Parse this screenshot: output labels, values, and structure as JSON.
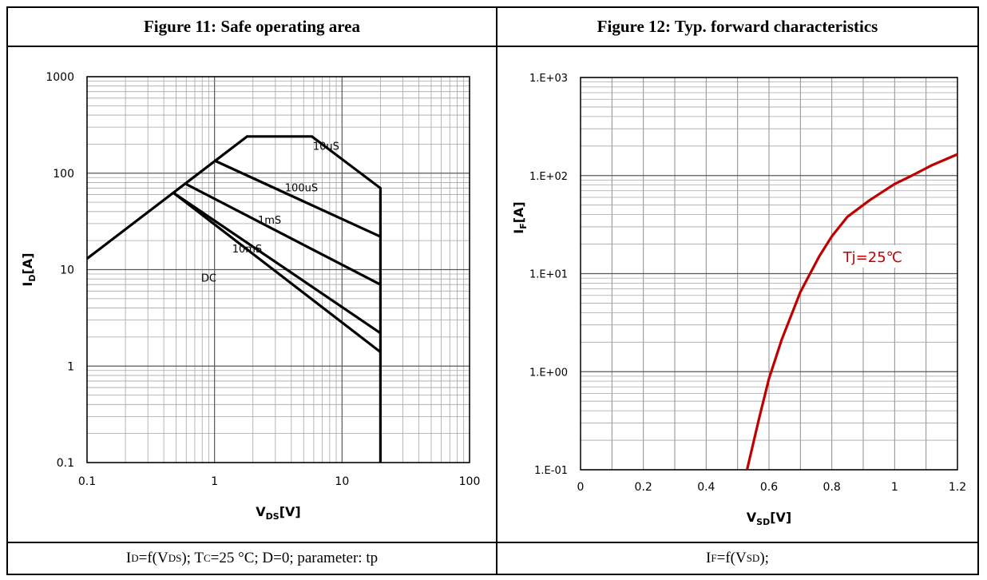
{
  "left": {
    "header": "Figure 11:  Safe operating area",
    "footer": {
      "p1": "I",
      "p1sub": "D",
      "p2": "=f(V",
      "p2sub": "DS",
      "p3": "); T",
      "p3sub": "C",
      "p4": "=25 °C; D=0; parameter: tp"
    }
  },
  "right": {
    "header": "Figure 12:  Typ. forward characteristics",
    "footer": {
      "p1": "I",
      "p1sub": "F",
      "p2": "=f(V",
      "p2sub": "SD",
      "p3": ");"
    }
  },
  "chart_data": [
    {
      "type": "line",
      "title": "Figure 11:  Safe operating area",
      "xlabel": "V",
      "xlabel_sub": "DS",
      "xlabel_unit": "[V]",
      "ylabel": "I",
      "ylabel_sub": "D",
      "ylabel_unit": "[A]",
      "xscale": "log",
      "yscale": "log",
      "xlim": [
        0.1,
        100
      ],
      "ylim": [
        0.1,
        1000
      ],
      "xticks": [
        "0.1",
        "1",
        "10",
        "100"
      ],
      "yticks": [
        "0.1",
        "1",
        "10",
        "100",
        "1000"
      ],
      "grid": true,
      "series": [
        {
          "name": "10uS",
          "points": [
            [
              0.1,
              13
            ],
            [
              1.8,
              240
            ],
            [
              5.8,
              240
            ],
            [
              20,
              70
            ],
            [
              20,
              0.1
            ]
          ],
          "label_at": [
            7.5,
            175
          ]
        },
        {
          "name": "100uS",
          "points": [
            [
              1.0,
              135
            ],
            [
              20,
              22
            ]
          ],
          "label_at": [
            4.8,
            65
          ]
        },
        {
          "name": "1mS",
          "points": [
            [
              0.6,
              77
            ],
            [
              20,
              7
            ]
          ],
          "label_at": [
            2.7,
            30
          ]
        },
        {
          "name": "10mS",
          "points": [
            [
              0.48,
              62
            ],
            [
              20,
              2.2
            ]
          ],
          "label_at": [
            1.8,
            15
          ]
        },
        {
          "name": "DC",
          "points": [
            [
              0.48,
              62
            ],
            [
              20,
              1.4
            ]
          ],
          "label_at": [
            0.9,
            7.5
          ]
        }
      ],
      "color": "#000000"
    },
    {
      "type": "line",
      "title": "Figure 12:  Typ. forward characteristics",
      "xlabel": "V",
      "xlabel_sub": "SD",
      "xlabel_unit": "[V]",
      "ylabel": "I",
      "ylabel_sub": "F",
      "ylabel_unit": "[A]",
      "xscale": "linear",
      "yscale": "log",
      "xlim": [
        0,
        1.2
      ],
      "ylim": [
        0.1,
        1000
      ],
      "xticks": [
        "0",
        "0.2",
        "0.4",
        "0.6",
        "0.8",
        "1",
        "1.2"
      ],
      "yticks": [
        "1.E-01",
        "1.E+00",
        "1.E+01",
        "1.E+02",
        "1.E+03"
      ],
      "grid": true,
      "series": [
        {
          "name": "Tj=25℃",
          "x": [
            0.53,
            0.57,
            0.6,
            0.64,
            0.7,
            0.76,
            0.8,
            0.85,
            0.92,
            1.0,
            1.05,
            1.12,
            1.2
          ],
          "y": [
            0.1,
            0.35,
            0.85,
            2.1,
            6.5,
            15,
            24,
            38,
            56,
            82,
            98,
            128,
            165
          ],
          "label_at": [
            0.93,
            15
          ]
        }
      ],
      "color": "#c00000"
    }
  ]
}
